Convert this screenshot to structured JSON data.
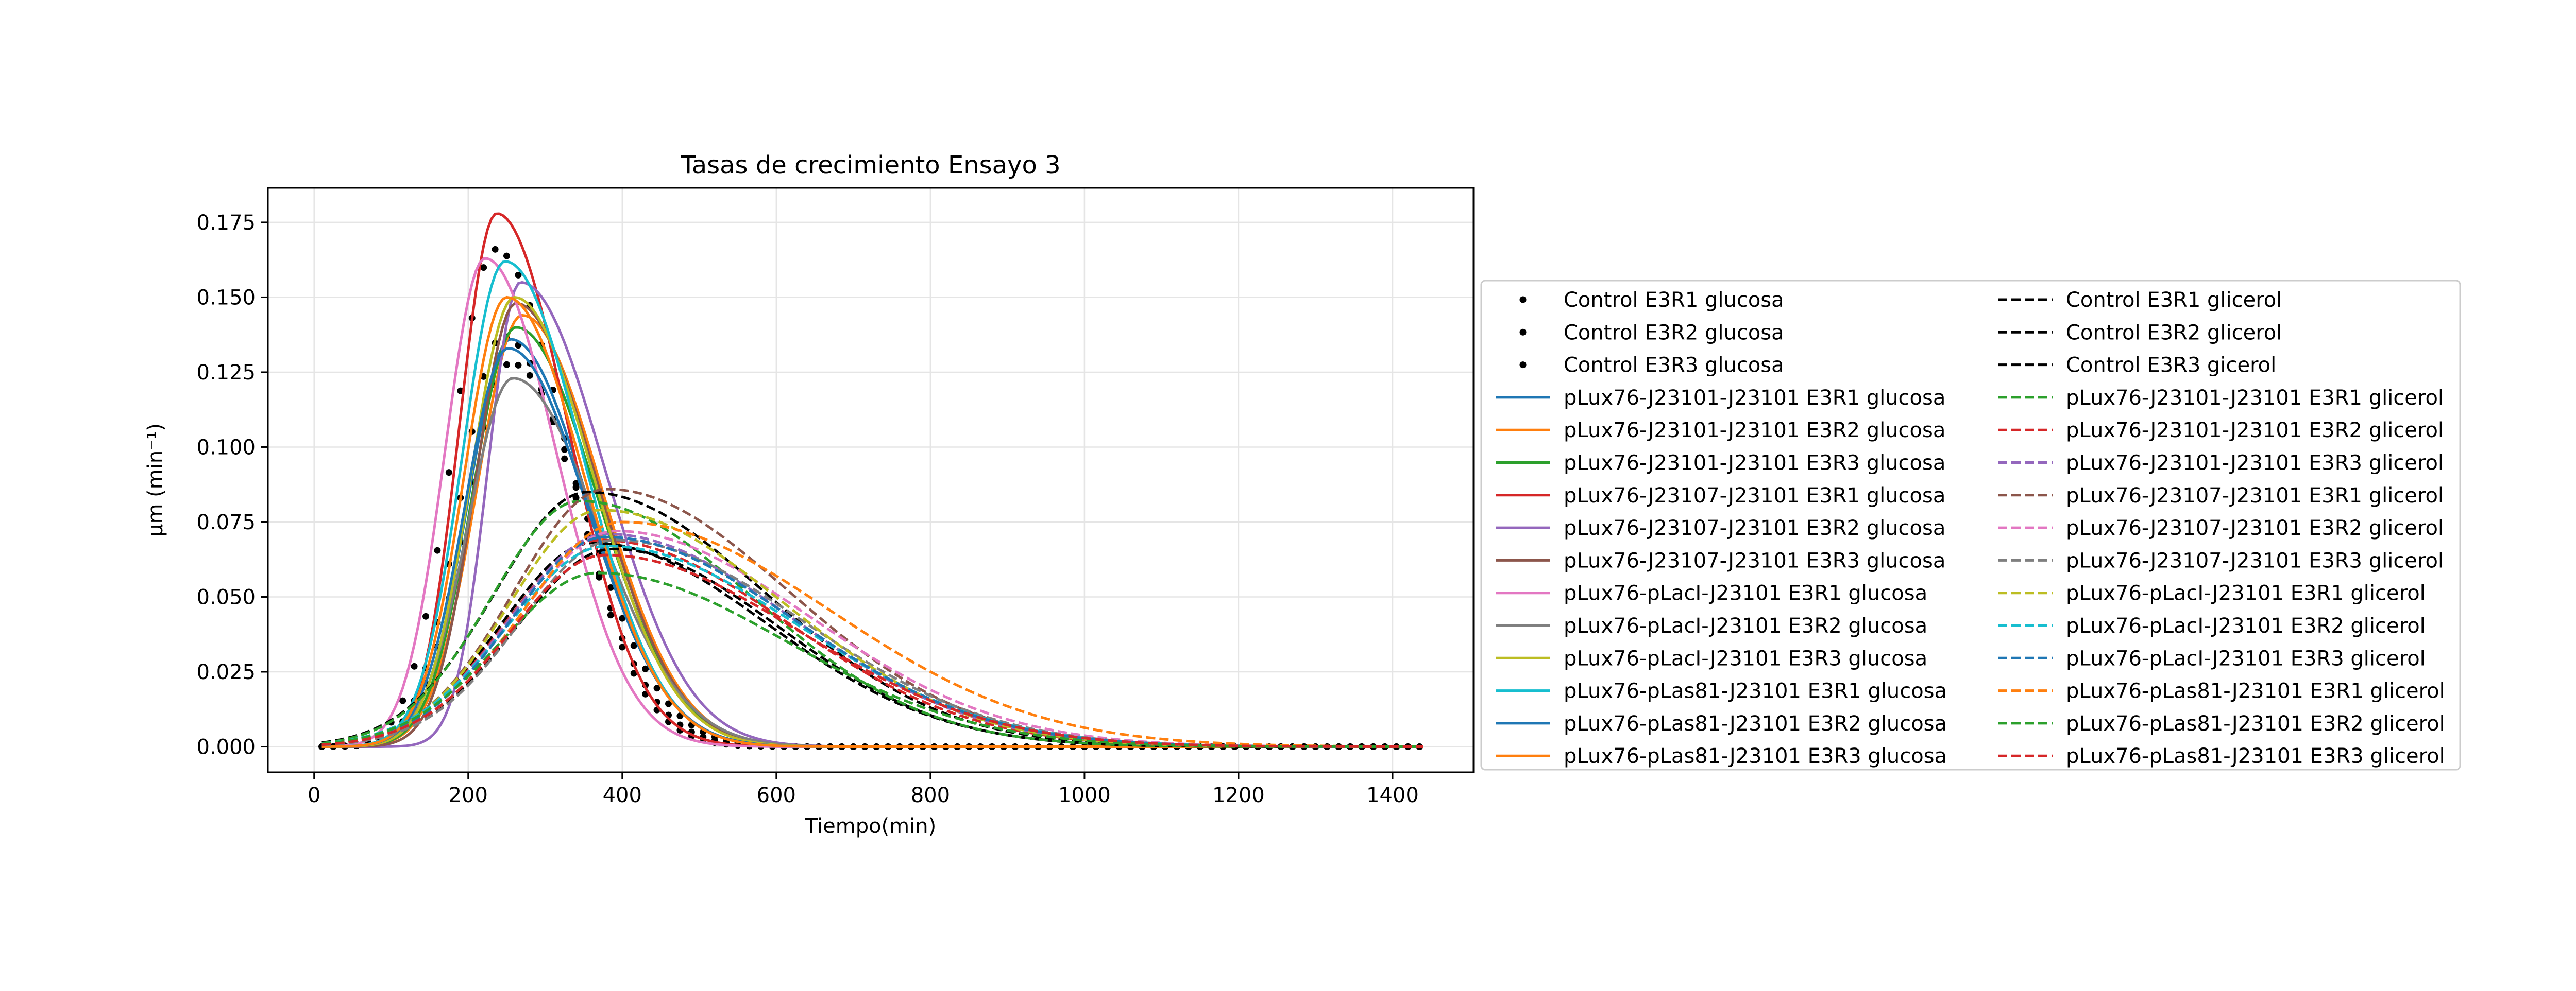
{
  "chart_data": {
    "type": "line",
    "title": "Tasas de crecimiento Ensayo 3",
    "xlabel": "Tiempo(min)",
    "ylabel": "μm (min⁻¹)",
    "xlim": [
      -60,
      1505
    ],
    "ylim": [
      -0.0085,
      0.1865
    ],
    "xticks": [
      0,
      200,
      400,
      600,
      800,
      1000,
      1200,
      1400
    ],
    "yticks": [
      0.0,
      0.025,
      0.05,
      0.075,
      0.1,
      0.125,
      0.15,
      0.175
    ],
    "xtick_labels": [
      "0",
      "200",
      "400",
      "600",
      "800",
      "1000",
      "1200",
      "1400"
    ],
    "ytick_labels": [
      "0.000",
      "0.025",
      "0.050",
      "0.075",
      "0.100",
      "0.125",
      "0.150",
      "0.175"
    ],
    "grid": true,
    "legend_placement": "right, outside the plot",
    "legend_columns": 2,
    "series": [
      {
        "name": "Control E3R1 glucosa",
        "color": "#000000",
        "style": "dots",
        "params": [
          0.166,
          235,
          55,
          92,
          1436
        ]
      },
      {
        "name": "Control E3R2 glucosa",
        "color": "#000000",
        "style": "dots",
        "params": [
          0.137,
          245,
          55,
          95,
          1436
        ]
      },
      {
        "name": "Control E3R3 glucosa",
        "color": "#000000",
        "style": "dots",
        "params": [
          0.128,
          255,
          58,
          98,
          1436
        ]
      },
      {
        "name": "pLux76-J23101-J23101 E3R1 glucosa",
        "color": "#1f77b4",
        "style": "solid",
        "params": [
          0.136,
          255,
          55,
          100,
          1440
        ]
      },
      {
        "name": "pLux76-J23101-J23101 E3R2 glucosa",
        "color": "#ff7f0e",
        "style": "solid",
        "params": [
          0.144,
          270,
          58,
          102,
          1440
        ]
      },
      {
        "name": "pLux76-J23101-J23101 E3R3 glucosa",
        "color": "#2ca02c",
        "style": "solid",
        "params": [
          0.14,
          262,
          56,
          104,
          1440
        ]
      },
      {
        "name": "pLux76-J23107-J23101 E3R1 glucosa",
        "color": "#d62728",
        "style": "solid",
        "params": [
          0.178,
          237,
          48,
          92,
          1440
        ]
      },
      {
        "name": "pLux76-J23107-J23101 E3R2 glucosa",
        "color": "#9467bd",
        "style": "solid",
        "params": [
          0.155,
          268,
          42,
          108,
          1440
        ]
      },
      {
        "name": "pLux76-J23107-J23101 E3R3 glucosa",
        "color": "#8c564b",
        "style": "solid",
        "params": [
          0.148,
          262,
          52,
          104,
          1440
        ]
      },
      {
        "name": "pLux76-pLacI-J23101 E3R1 glucosa",
        "color": "#e377c2",
        "style": "solid",
        "params": [
          0.163,
          222,
          52,
          92,
          1440
        ]
      },
      {
        "name": "pLux76-pLacI-J23101 E3R2 glucosa",
        "color": "#7f7f7f",
        "style": "solid",
        "params": [
          0.123,
          258,
          58,
          110,
          1440
        ]
      },
      {
        "name": "pLux76-pLacI-J23101 E3R3 glucosa",
        "color": "#bcbd22",
        "style": "solid",
        "params": [
          0.15,
          260,
          56,
          102,
          1440
        ]
      },
      {
        "name": "pLux76-pLas81-J23101 E3R1 glucosa",
        "color": "#17becf",
        "style": "solid",
        "params": [
          0.162,
          248,
          55,
          100,
          1440
        ]
      },
      {
        "name": "pLux76-pLas81-J23101 E3R2 glucosa",
        "color": "#1f77b4",
        "style": "solid",
        "params": [
          0.133,
          252,
          56,
          102,
          1440
        ]
      },
      {
        "name": "pLux76-pLas81-J23101 E3R3 glucosa",
        "color": "#ff7f0e",
        "style": "solid",
        "params": [
          0.15,
          250,
          55,
          100,
          1440
        ]
      },
      {
        "name": "Control E3R1 glicerol",
        "color": "#000000",
        "style": "dashed",
        "params": [
          0.085,
          355,
          120,
          230,
          1440
        ]
      },
      {
        "name": "Control E3R2 glicerol",
        "color": "#000000",
        "style": "dashed",
        "params": [
          0.068,
          362,
          118,
          225,
          1440
        ]
      },
      {
        "name": "Control E3R3 gicerol",
        "color": "#000000",
        "style": "dashed",
        "params": [
          0.066,
          388,
          125,
          215,
          1440
        ]
      },
      {
        "name": "pLux76-J23101-J23101 E3R1 glicerol",
        "color": "#2ca02c",
        "style": "dashed",
        "params": [
          0.082,
          345,
          115,
          225,
          1440
        ]
      },
      {
        "name": "pLux76-J23101-J23101 E3R2 glicerol",
        "color": "#d62728",
        "style": "dashed",
        "params": [
          0.069,
          372,
          122,
          240,
          1440
        ]
      },
      {
        "name": "pLux76-J23101-J23101 E3R3 glicerol",
        "color": "#9467bd",
        "style": "dashed",
        "params": [
          0.071,
          380,
          125,
          240,
          1440
        ]
      },
      {
        "name": "pLux76-J23107-J23101 E3R1 glicerol",
        "color": "#8c564b",
        "style": "dashed",
        "params": [
          0.086,
          380,
          120,
          235,
          1440
        ]
      },
      {
        "name": "pLux76-J23107-J23101 E3R2 glicerol",
        "color": "#e377c2",
        "style": "dashed",
        "params": [
          0.072,
          392,
          125,
          250,
          1440
        ]
      },
      {
        "name": "pLux76-J23107-J23101 E3R3 glicerol",
        "color": "#7f7f7f",
        "style": "dashed",
        "params": [
          0.069,
          390,
          122,
          245,
          1440
        ]
      },
      {
        "name": "pLux76-pLacI-J23101 E3R1 glicerol",
        "color": "#bcbd22",
        "style": "dashed",
        "params": [
          0.079,
          372,
          118,
          238,
          1440
        ]
      },
      {
        "name": "pLux76-pLacI-J23101 E3R2 glicerol",
        "color": "#17becf",
        "style": "dashed",
        "params": [
          0.067,
          380,
          128,
          248,
          1440
        ]
      },
      {
        "name": "pLux76-pLacI-J23101 E3R3 glicerol",
        "color": "#1f77b4",
        "style": "dashed",
        "params": [
          0.07,
          378,
          122,
          245,
          1440
        ]
      },
      {
        "name": "pLux76-pLas81-J23101 E3R1 glicerol",
        "color": "#ff7f0e",
        "style": "dashed",
        "params": [
          0.075,
          400,
          128,
          270,
          1440
        ]
      },
      {
        "name": "pLux76-pLas81-J23101 E3R2 glicerol",
        "color": "#2ca02c",
        "style": "dashed",
        "params": [
          0.058,
          368,
          125,
          245,
          1440
        ]
      },
      {
        "name": "pLux76-pLas81-J23101 E3R3 glicerol",
        "color": "#d62728",
        "style": "dashed",
        "params": [
          0.064,
          378,
          122,
          250,
          1440
        ]
      }
    ]
  }
}
